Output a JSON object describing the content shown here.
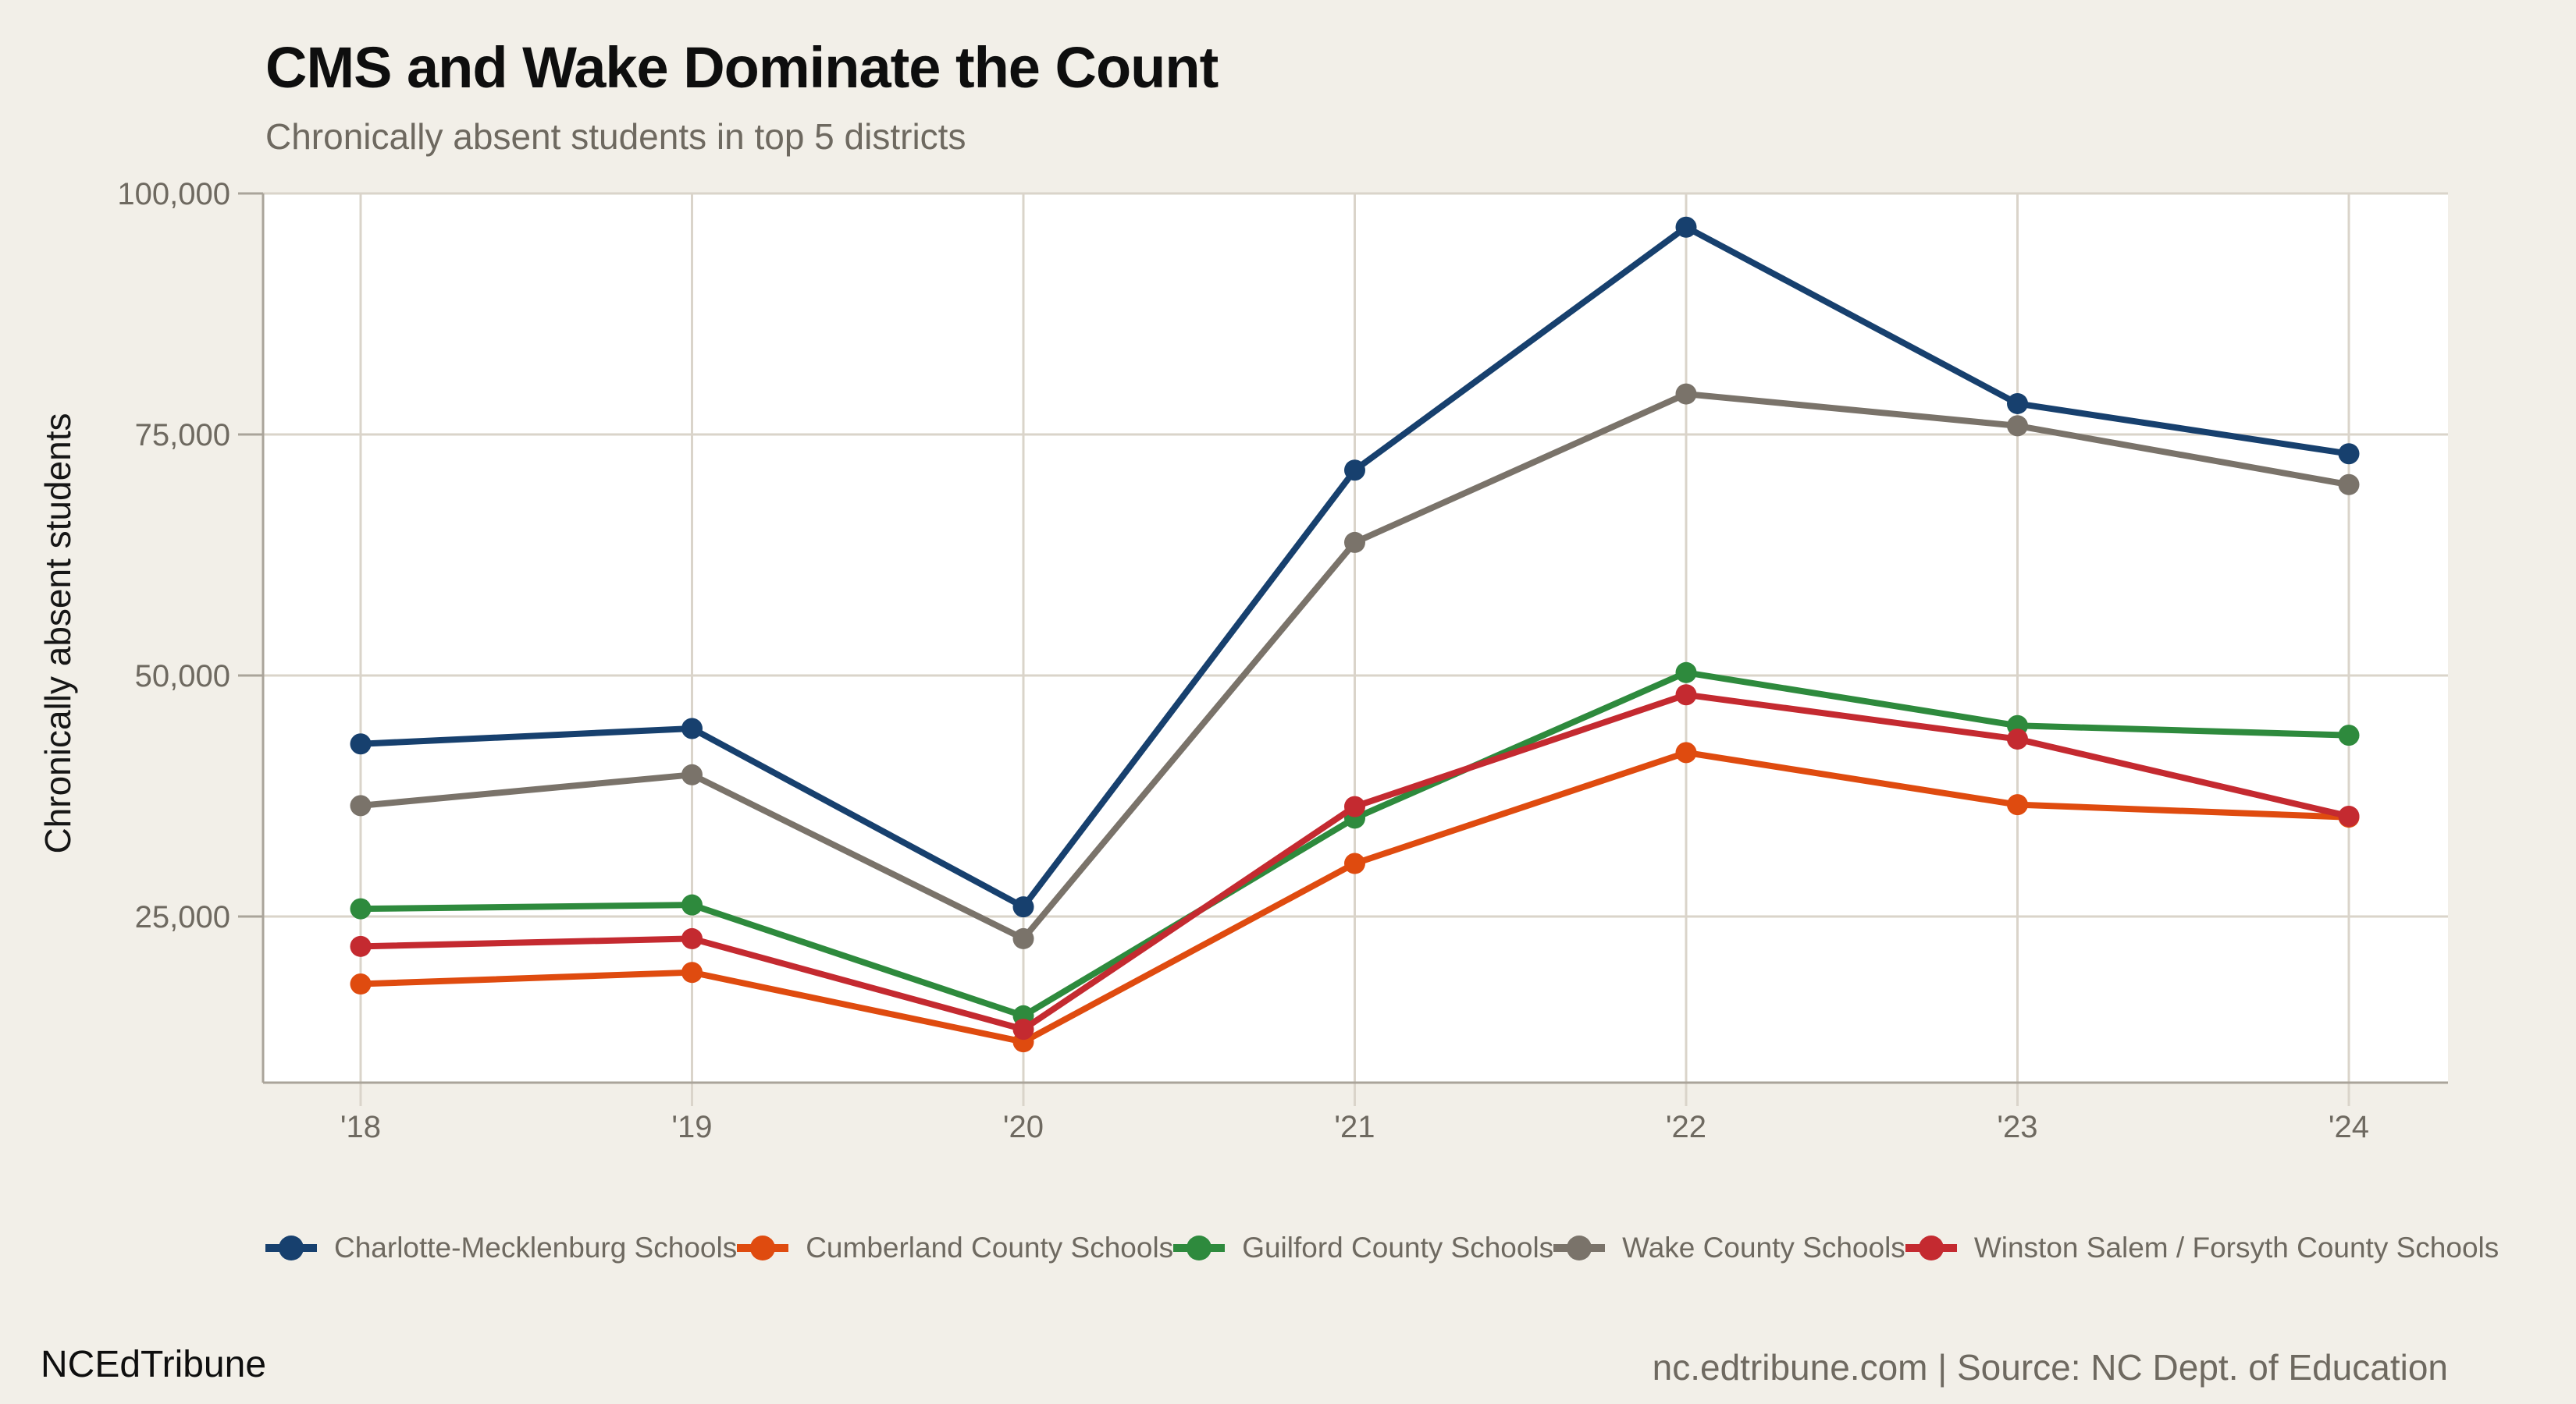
{
  "colors": {
    "background": "#f2efe8",
    "plot_background": "#ffffff",
    "gridline": "#dad4ca",
    "axis_line": "#aaa49a",
    "tick_label": "#6e6960",
    "title_text": "#0e0e0e",
    "subtitle_text": "#6e6960"
  },
  "footer": {
    "brand": "NCEdTribune",
    "source_text": "nc.edtribune.com | Source: NC Dept. of Education"
  },
  "chart_data": {
    "type": "line",
    "title": "CMS and Wake Dominate the Count",
    "subtitle": "Chronically absent students in top 5 districts",
    "ylabel": "Chronically absent students",
    "xlabel": "",
    "x_tick_labels": [
      "'18",
      "'19",
      "'20",
      "'21",
      "'22",
      "'23",
      "'24"
    ],
    "y_ticks": [
      25000,
      50000,
      75000,
      100000
    ],
    "y_tick_labels": [
      "25,000",
      "50,000",
      "75,000",
      "100,000"
    ],
    "ylim": [
      7800,
      100000
    ],
    "grid": true,
    "legend_position": "bottom",
    "series": [
      {
        "name": "Charlotte-Mecklenburg Schools",
        "color": "#17406e",
        "values": [
          42900,
          44500,
          26000,
          71300,
          96500,
          78200,
          73000
        ]
      },
      {
        "name": "Cumberland County Schools",
        "color": "#df4b0f",
        "values": [
          18000,
          19200,
          12000,
          30500,
          42000,
          36600,
          35300
        ]
      },
      {
        "name": "Guilford County Schools",
        "color": "#2e8a3d",
        "values": [
          25800,
          26200,
          14700,
          35200,
          50300,
          44800,
          43800
        ]
      },
      {
        "name": "Wake County Schools",
        "color": "#7a736a",
        "values": [
          36500,
          39700,
          22700,
          63800,
          79200,
          75900,
          69800
        ]
      },
      {
        "name": "Winston Salem / Forsyth County Schools",
        "color": "#c42a30",
        "values": [
          21900,
          22700,
          13300,
          36400,
          48000,
          43400,
          35400
        ]
      }
    ]
  }
}
